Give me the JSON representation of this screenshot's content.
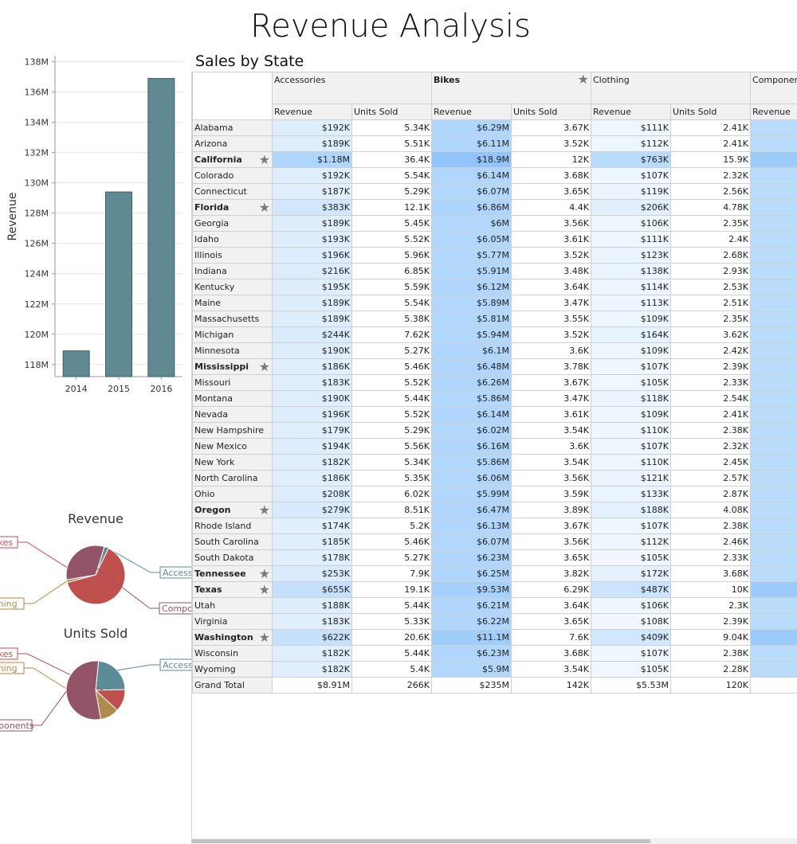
{
  "page_title": "Revenue Analysis",
  "chart_data": [
    {
      "type": "bar",
      "categories": [
        "2014",
        "2015",
        "2016"
      ],
      "values": [
        118.9,
        129.4,
        136.9
      ],
      "ylabel": "Revenue",
      "ylim": [
        117.2,
        138.4
      ],
      "yticks": [
        118,
        120,
        122,
        124,
        126,
        128,
        130,
        132,
        134,
        136,
        138
      ],
      "ytick_labels": [
        "118M",
        "120M",
        "122M",
        "124M",
        "126M",
        "128M",
        "130M",
        "132M",
        "134M",
        "136M",
        "138M"
      ],
      "color": "#5f8a91"
    },
    {
      "type": "pie",
      "title": "Revenue",
      "categories": [
        "Accessories",
        "Bikes",
        "Clothing",
        "Components"
      ],
      "values": [
        8.91,
        235,
        5.53,
        120
      ],
      "colors": [
        "#5b8b95",
        "#c0504d",
        "#b08a4a",
        "#945467"
      ]
    },
    {
      "type": "pie",
      "title": "Units Sold",
      "categories": [
        "Accessories",
        "Bikes",
        "Clothing",
        "Components"
      ],
      "values": [
        266,
        142,
        120,
        630
      ],
      "colors": [
        "#5b8b95",
        "#c0504d",
        "#b08a4a",
        "#945467"
      ]
    }
  ],
  "pivot": {
    "title": "Sales by State",
    "categories": [
      {
        "label": "Accessories",
        "bold": false,
        "star": false
      },
      {
        "label": "Bikes",
        "bold": true,
        "star": true
      },
      {
        "label": "Clothing",
        "bold": false,
        "star": false
      },
      {
        "label": "Components",
        "bold": false,
        "star": false
      }
    ],
    "measures": [
      "Revenue",
      "Units Sold",
      "Revenue",
      "Units Sold",
      "Revenue",
      "Units Sold",
      "Revenue"
    ],
    "rows": [
      {
        "state": "Alabama",
        "bold": false,
        "star": false,
        "values": [
          "$192K",
          "5.34K",
          "$6.29M",
          "3.67K",
          "$111K",
          "2.41K"
        ]
      },
      {
        "state": "Arizona",
        "bold": false,
        "star": false,
        "values": [
          "$189K",
          "5.51K",
          "$6.11M",
          "3.52K",
          "$112K",
          "2.41K"
        ]
      },
      {
        "state": "California",
        "bold": true,
        "star": true,
        "values": [
          "$1.18M",
          "36.4K",
          "$18.9M",
          "12K",
          "$763K",
          "15.9K"
        ]
      },
      {
        "state": "Colorado",
        "bold": false,
        "star": false,
        "values": [
          "$192K",
          "5.54K",
          "$6.14M",
          "3.68K",
          "$107K",
          "2.32K"
        ]
      },
      {
        "state": "Connecticut",
        "bold": false,
        "star": false,
        "values": [
          "$187K",
          "5.29K",
          "$6.07M",
          "3.65K",
          "$119K",
          "2.56K"
        ]
      },
      {
        "state": "Florida",
        "bold": true,
        "star": true,
        "values": [
          "$383K",
          "12.1K",
          "$6.86M",
          "4.4K",
          "$206K",
          "4.78K"
        ]
      },
      {
        "state": "Georgia",
        "bold": false,
        "star": false,
        "values": [
          "$189K",
          "5.45K",
          "$6M",
          "3.56K",
          "$106K",
          "2.35K"
        ]
      },
      {
        "state": "Idaho",
        "bold": false,
        "star": false,
        "values": [
          "$193K",
          "5.52K",
          "$6.05M",
          "3.61K",
          "$111K",
          "2.4K"
        ]
      },
      {
        "state": "Illinois",
        "bold": false,
        "star": false,
        "values": [
          "$196K",
          "5.96K",
          "$5.77M",
          "3.52K",
          "$123K",
          "2.68K"
        ]
      },
      {
        "state": "Indiana",
        "bold": false,
        "star": false,
        "values": [
          "$216K",
          "6.85K",
          "$5.91M",
          "3.48K",
          "$138K",
          "2.93K"
        ]
      },
      {
        "state": "Kentucky",
        "bold": false,
        "star": false,
        "values": [
          "$195K",
          "5.59K",
          "$6.12M",
          "3.64K",
          "$114K",
          "2.53K"
        ]
      },
      {
        "state": "Maine",
        "bold": false,
        "star": false,
        "values": [
          "$189K",
          "5.54K",
          "$5.89M",
          "3.47K",
          "$113K",
          "2.51K"
        ]
      },
      {
        "state": "Massachusetts",
        "bold": false,
        "star": false,
        "values": [
          "$189K",
          "5.38K",
          "$5.81M",
          "3.55K",
          "$109K",
          "2.35K"
        ]
      },
      {
        "state": "Michigan",
        "bold": false,
        "star": false,
        "values": [
          "$244K",
          "7.62K",
          "$5.94M",
          "3.52K",
          "$164K",
          "3.62K"
        ]
      },
      {
        "state": "Minnesota",
        "bold": false,
        "star": false,
        "values": [
          "$190K",
          "5.27K",
          "$6.1M",
          "3.6K",
          "$109K",
          "2.42K"
        ]
      },
      {
        "state": "Mississippi",
        "bold": true,
        "star": true,
        "values": [
          "$186K",
          "5.46K",
          "$6.48M",
          "3.78K",
          "$107K",
          "2.39K"
        ]
      },
      {
        "state": "Missouri",
        "bold": false,
        "star": false,
        "values": [
          "$183K",
          "5.52K",
          "$6.26M",
          "3.67K",
          "$105K",
          "2.33K"
        ]
      },
      {
        "state": "Montana",
        "bold": false,
        "star": false,
        "values": [
          "$190K",
          "5.44K",
          "$5.86M",
          "3.47K",
          "$118K",
          "2.54K"
        ]
      },
      {
        "state": "Nevada",
        "bold": false,
        "star": false,
        "values": [
          "$196K",
          "5.52K",
          "$6.14M",
          "3.61K",
          "$109K",
          "2.41K"
        ]
      },
      {
        "state": "New Hampshire",
        "bold": false,
        "star": false,
        "values": [
          "$179K",
          "5.29K",
          "$6.02M",
          "3.54K",
          "$110K",
          "2.38K"
        ]
      },
      {
        "state": "New Mexico",
        "bold": false,
        "star": false,
        "values": [
          "$194K",
          "5.56K",
          "$6.16M",
          "3.6K",
          "$107K",
          "2.32K"
        ]
      },
      {
        "state": "New York",
        "bold": false,
        "star": false,
        "values": [
          "$182K",
          "5.34K",
          "$5.86M",
          "3.54K",
          "$110K",
          "2.45K"
        ]
      },
      {
        "state": "North Carolina",
        "bold": false,
        "star": false,
        "values": [
          "$186K",
          "5.35K",
          "$6.06M",
          "3.56K",
          "$121K",
          "2.57K"
        ]
      },
      {
        "state": "Ohio",
        "bold": false,
        "star": false,
        "values": [
          "$208K",
          "6.02K",
          "$5.99M",
          "3.59K",
          "$133K",
          "2.87K"
        ]
      },
      {
        "state": "Oregon",
        "bold": true,
        "star": true,
        "values": [
          "$279K",
          "8.51K",
          "$6.47M",
          "3.89K",
          "$188K",
          "4.08K"
        ]
      },
      {
        "state": "Rhode Island",
        "bold": false,
        "star": false,
        "values": [
          "$174K",
          "5.2K",
          "$6.13M",
          "3.67K",
          "$107K",
          "2.38K"
        ]
      },
      {
        "state": "South Carolina",
        "bold": false,
        "star": false,
        "values": [
          "$185K",
          "5.46K",
          "$6.07M",
          "3.56K",
          "$112K",
          "2.46K"
        ]
      },
      {
        "state": "South Dakota",
        "bold": false,
        "star": false,
        "values": [
          "$178K",
          "5.27K",
          "$6.23M",
          "3.65K",
          "$105K",
          "2.33K"
        ]
      },
      {
        "state": "Tennessee",
        "bold": true,
        "star": true,
        "values": [
          "$253K",
          "7.9K",
          "$6.25M",
          "3.82K",
          "$172K",
          "3.68K"
        ]
      },
      {
        "state": "Texas",
        "bold": true,
        "star": true,
        "values": [
          "$655K",
          "19.1K",
          "$9.53M",
          "6.29K",
          "$487K",
          "10K"
        ]
      },
      {
        "state": "Utah",
        "bold": false,
        "star": false,
        "values": [
          "$188K",
          "5.44K",
          "$6.21M",
          "3.64K",
          "$106K",
          "2.3K"
        ]
      },
      {
        "state": "Virginia",
        "bold": false,
        "star": false,
        "values": [
          "$183K",
          "5.33K",
          "$6.22M",
          "3.65K",
          "$108K",
          "2.39K"
        ]
      },
      {
        "state": "Washington",
        "bold": true,
        "star": true,
        "values": [
          "$622K",
          "20.6K",
          "$11.1M",
          "7.6K",
          "$409K",
          "9.04K"
        ]
      },
      {
        "state": "Wisconsin",
        "bold": false,
        "star": false,
        "values": [
          "$182K",
          "5.44K",
          "$6.23M",
          "3.68K",
          "$107K",
          "2.38K"
        ]
      },
      {
        "state": "Wyoming",
        "bold": false,
        "star": false,
        "values": [
          "$182K",
          "5.4K",
          "$5.9M",
          "3.54K",
          "$105K",
          "2.28K"
        ]
      }
    ],
    "grand_total": {
      "label": "Grand Total",
      "values": [
        "$8.91M",
        "266K",
        "$235M",
        "142K",
        "$5.53M",
        "120K"
      ]
    }
  }
}
